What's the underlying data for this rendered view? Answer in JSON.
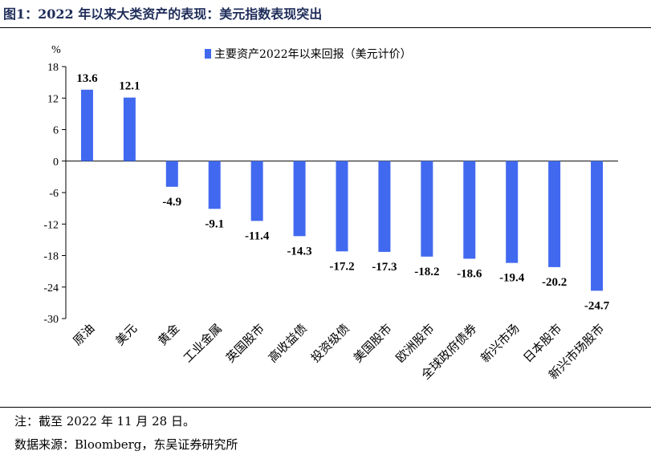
{
  "header": {
    "title": "图1：2022 年以来大类资产的表现：美元指数表现突出"
  },
  "notes": {
    "note": "注：截至 2022 年 11 月 28 日。",
    "source": "数据来源：Bloomberg，东吴证券研究所"
  },
  "chart_data": {
    "type": "bar",
    "title": "",
    "xlabel": "",
    "ylabel": "%",
    "ylim": [
      -30,
      18
    ],
    "yticks": [
      18,
      12,
      6,
      0,
      -6,
      -12,
      -18,
      -24,
      -30
    ],
    "grid": false,
    "legend_position": "top-center",
    "bar_color": "#4169f0",
    "categories": [
      "原油",
      "美元",
      "黄金",
      "工业金属",
      "英国股市",
      "高收益债",
      "投资级债",
      "美国股市",
      "欧洲股市",
      "全球政府债券",
      "新兴市场",
      "日本股市",
      "新兴市场股市"
    ],
    "series": [
      {
        "name": "主要资产2022年以来回报（美元计价）",
        "values": [
          13.6,
          12.1,
          -4.9,
          -9.1,
          -11.4,
          -14.3,
          -17.2,
          -17.3,
          -18.2,
          -18.6,
          -19.4,
          -20.2,
          -24.7
        ]
      }
    ]
  }
}
